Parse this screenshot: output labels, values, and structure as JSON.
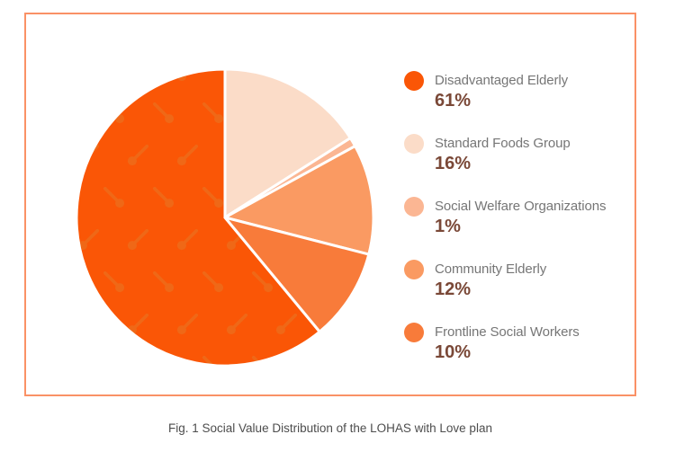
{
  "frame": {
    "border_color": "#FA9166",
    "background": "#FFFFFF"
  },
  "chart_data": {
    "type": "pie",
    "title": "Fig. 1 Social Value Distribution of the LOHAS with Love plan",
    "direction": "clockwise",
    "start_angle_deg": 140.4,
    "legend_position": "right",
    "slice_stroke_color": "#FFFFFF",
    "label_color": "#767676",
    "value_color": "#7A4837",
    "slices": [
      {
        "label": "Disadvantaged Elderly",
        "value": 61,
        "display": "61%",
        "color": "#FA5606",
        "pattern": "spoons",
        "pattern_color": "#EF6817"
      },
      {
        "label": "Standard Foods Group",
        "value": 16,
        "display": "16%",
        "color": "#FBDCC8"
      },
      {
        "label": "Social Welfare Organizations",
        "value": 1,
        "display": "1%",
        "color": "#FBB693"
      },
      {
        "label": "Community Elderly",
        "value": 12,
        "display": "12%",
        "color": "#FA9A62"
      },
      {
        "label": "Frontline Social Workers",
        "value": 10,
        "display": "10%",
        "color": "#F87B3A"
      }
    ]
  }
}
